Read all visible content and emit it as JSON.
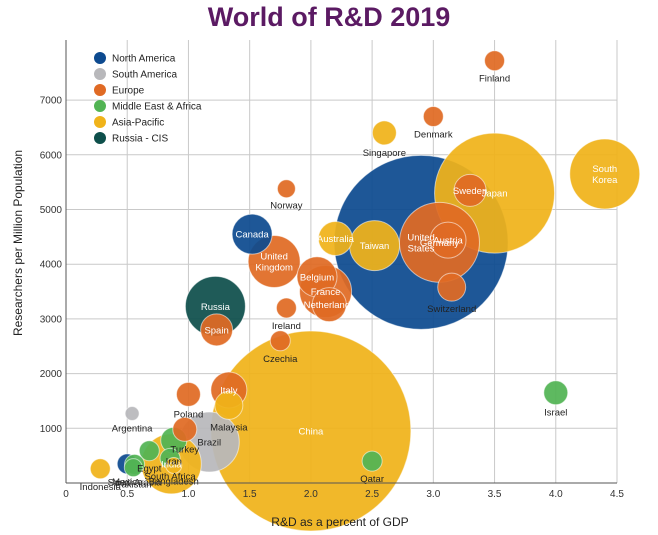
{
  "chart_data": {
    "type": "scatter",
    "title": "World of R&D 2019",
    "xlabel": "R&D as a percent of GDP",
    "ylabel": "Researchers per Million Population",
    "xlim": [
      0,
      4.5
    ],
    "ylim": [
      0,
      7500
    ],
    "xticks": [
      0,
      0.5,
      1.0,
      1.5,
      2.0,
      2.5,
      3.0,
      3.5,
      4.0,
      4.5
    ],
    "xtick_labels": [
      "0",
      "0.5",
      "1.0",
      "1.5",
      "2.0",
      "2.5",
      "3.0",
      "3.5",
      "4.0",
      "4.5"
    ],
    "yticks": [
      1000,
      2000,
      3000,
      4000,
      5000,
      6000,
      7000
    ],
    "ytick_labels": [
      "1000",
      "2000",
      "3000",
      "4000",
      "5000",
      "6000",
      "7000"
    ],
    "grid": true,
    "legend_position": "top-left",
    "series": [
      {
        "name": "North America",
        "color": "#0d4a8f",
        "label_color": "#ffffff",
        "points": [
          {
            "label": "United States",
            "x": 2.9,
            "y": 4400,
            "r": 87
          },
          {
            "label": "Canada",
            "x": 1.52,
            "y": 4550,
            "r": 20
          },
          {
            "label": "Mexico",
            "x": 0.5,
            "y": 350,
            "r": 10
          }
        ]
      },
      {
        "name": "South America",
        "color": "#b8b8bb",
        "label_color": "#222222",
        "points": [
          {
            "label": "Argentina",
            "x": 0.54,
            "y": 1270,
            "r": 7
          },
          {
            "label": "Brazil",
            "x": 1.17,
            "y": 750,
            "r": 30
          }
        ]
      },
      {
        "name": "Europe",
        "color": "#e06a24",
        "label_color": "#ffffff",
        "points": [
          {
            "label": "Finland",
            "x": 3.5,
            "y": 7720,
            "r": 10
          },
          {
            "label": "Denmark",
            "x": 3.0,
            "y": 6700,
            "r": 10
          },
          {
            "label": "Sweden",
            "x": 3.3,
            "y": 5350,
            "r": 16
          },
          {
            "label": "Norway",
            "x": 1.8,
            "y": 5380,
            "r": 9
          },
          {
            "label": "Germany",
            "x": 3.05,
            "y": 4400,
            "r": 40
          },
          {
            "label": "Austria",
            "x": 3.12,
            "y": 4440,
            "r": 18
          },
          {
            "label": "Switzerland",
            "x": 3.15,
            "y": 3580,
            "r": 14
          },
          {
            "label": "United Kingdom",
            "x": 1.7,
            "y": 4050,
            "r": 26
          },
          {
            "label": "Belgium",
            "x": 2.05,
            "y": 3770,
            "r": 20
          },
          {
            "label": "France",
            "x": 2.12,
            "y": 3500,
            "r": 26
          },
          {
            "label": "Netherlands",
            "x": 2.15,
            "y": 3260,
            "r": 17
          },
          {
            "label": "Ireland",
            "x": 1.8,
            "y": 3200,
            "r": 10
          },
          {
            "label": "Spain",
            "x": 1.23,
            "y": 2800,
            "r": 16
          },
          {
            "label": "Czechia",
            "x": 1.75,
            "y": 2600,
            "r": 10
          },
          {
            "label": "Italy",
            "x": 1.33,
            "y": 1700,
            "r": 18
          },
          {
            "label": "Poland",
            "x": 1.0,
            "y": 1620,
            "r": 12
          },
          {
            "label": "Turkey",
            "x": 0.97,
            "y": 980,
            "r": 12
          }
        ]
      },
      {
        "name": "Middle East & Africa",
        "color": "#52b454",
        "label_color": "#ffffff",
        "points": [
          {
            "label": "Israel",
            "x": 4.0,
            "y": 1650,
            "r": 12
          },
          {
            "label": "Iran",
            "x": 0.88,
            "y": 780,
            "r": 13
          },
          {
            "label": "Egypt",
            "x": 0.68,
            "y": 590,
            "r": 10
          },
          {
            "label": "Qatar",
            "x": 2.5,
            "y": 400,
            "r": 10
          },
          {
            "label": "Saudi Arabia",
            "x": 0.56,
            "y": 340,
            "r": 10
          },
          {
            "label": "South Africa",
            "x": 0.85,
            "y": 450,
            "r": 10
          },
          {
            "label": "Pakistan",
            "x": 0.55,
            "y": 280,
            "r": 9
          }
        ]
      },
      {
        "name": "Asia-Pacific",
        "color": "#f0b31a",
        "label_color": "#ffffff",
        "points": [
          {
            "label": "Japan",
            "x": 3.5,
            "y": 5300,
            "r": 60
          },
          {
            "label": "South Korea",
            "x": 4.4,
            "y": 5650,
            "r": 35
          },
          {
            "label": "China",
            "x": 2.0,
            "y": 950,
            "r": 100
          },
          {
            "label": "Singapore",
            "x": 2.6,
            "y": 6400,
            "r": 12
          },
          {
            "label": "Australia",
            "x": 2.2,
            "y": 4470,
            "r": 17
          },
          {
            "label": "Taiwan",
            "x": 2.52,
            "y": 4340,
            "r": 25
          },
          {
            "label": "Malaysia",
            "x": 1.33,
            "y": 1420,
            "r": 14
          },
          {
            "label": "Indonesia",
            "x": 0.28,
            "y": 260,
            "r": 10
          },
          {
            "label": "India",
            "x": 0.86,
            "y": 350,
            "r": 30
          },
          {
            "label": "Bangladesh",
            "x": 0.88,
            "y": 320,
            "r": 8
          }
        ]
      },
      {
        "name": "Russia - CIS",
        "color": "#0e4f4b",
        "label_color": "#ffffff",
        "points": [
          {
            "label": "Russia",
            "x": 1.22,
            "y": 3230,
            "r": 30
          }
        ]
      }
    ]
  }
}
